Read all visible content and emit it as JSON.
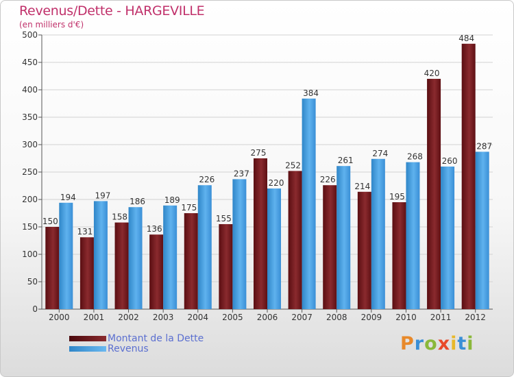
{
  "header": {
    "title": "Revenus/Dette - HARGEVILLE",
    "subtitle": "(en milliers d'€)"
  },
  "chart_data": {
    "type": "bar",
    "title": "Revenus/Dette - HARGEVILLE",
    "ylabel": "(en milliers d'€)",
    "xlabel": "",
    "ylim": [
      0,
      500
    ],
    "yticks": [
      0,
      50,
      100,
      150,
      200,
      250,
      300,
      350,
      400,
      450,
      500
    ],
    "grid": true,
    "categories": [
      "2000",
      "2001",
      "2002",
      "2003",
      "2004",
      "2005",
      "2006",
      "2007",
      "2008",
      "2009",
      "2010",
      "2011",
      "2012"
    ],
    "series": [
      {
        "name": "Montant de la Dette",
        "color": "#7a1a1e",
        "values": [
          150,
          131,
          158,
          136,
          175,
          155,
          275,
          252,
          226,
          214,
          195,
          420,
          484
        ]
      },
      {
        "name": "Revenus",
        "color": "#4ea3e4",
        "values": [
          194,
          197,
          186,
          189,
          226,
          237,
          220,
          384,
          261,
          274,
          268,
          260,
          287
        ]
      }
    ],
    "legend_position": "bottom-left"
  },
  "legend": {
    "debt_label": "Montant de la Dette",
    "revenue_label": "Revenus"
  },
  "logo": {
    "letters": [
      "P",
      "r",
      "o",
      "x",
      "i",
      "t",
      "i"
    ],
    "colors": [
      "#e8892a",
      "#3a8fd6",
      "#8ab83a",
      "#e84a2a",
      "#e8b82a",
      "#3a8fd6",
      "#8ab83a"
    ]
  }
}
